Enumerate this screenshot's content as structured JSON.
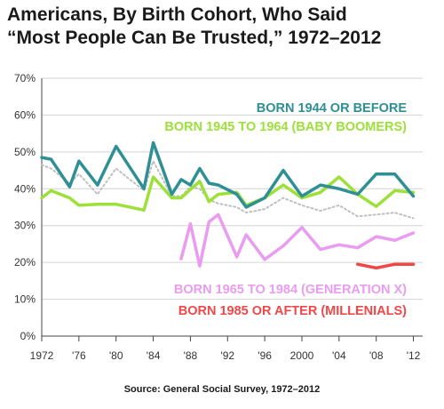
{
  "title_line1": "Americans, By Birth Cohort, Who Said",
  "title_line2": "“Most People Can Be Trusted,” 1972–2012",
  "source": "Source: General Social Survey, 1972–2012",
  "chart_data": {
    "type": "line",
    "title": "Americans, By Birth Cohort, Who Said “Most People Can Be Trusted,” 1972–2012",
    "xlabel": "",
    "ylabel": "",
    "ylim": [
      0,
      70
    ],
    "yticks": [
      0,
      10,
      20,
      30,
      40,
      50,
      60,
      70
    ],
    "ytick_labels": [
      "0%",
      "10%",
      "20%",
      "30%",
      "40%",
      "50%",
      "60%",
      "70%"
    ],
    "xlim": [
      1972,
      2013
    ],
    "xticks": [
      1972,
      1976,
      1980,
      1984,
      1988,
      1992,
      1996,
      2000,
      2004,
      2008,
      2012
    ],
    "xtick_labels": [
      "1972",
      "'76",
      "'80",
      "'84",
      "'88",
      "'92",
      "'96",
      "2000",
      "'04",
      "'08",
      "'12"
    ],
    "grid": true,
    "series": [
      {
        "name": "BORN 1944 OR BEFORE",
        "color": "#2e8f94",
        "label_in_chart": true,
        "x": [
          1972,
          1973,
          1975,
          1976,
          1978,
          1980,
          1983,
          1984,
          1986,
          1987,
          1988,
          1989,
          1990,
          1991,
          1993,
          1994,
          1996,
          1998,
          2000,
          2002,
          2004,
          2006,
          2008,
          2010,
          2012
        ],
        "values": [
          48.5,
          48,
          40.5,
          47.5,
          41,
          51.5,
          40,
          52.5,
          38.5,
          42.5,
          41,
          45.5,
          41.5,
          41,
          38.5,
          35,
          37.5,
          45,
          38,
          41,
          40,
          38.5,
          44,
          44,
          38
        ]
      },
      {
        "name": "BORN 1945 TO 1964 (BABY BOOMERS)",
        "color": "#9ee03a",
        "label_in_chart": true,
        "x": [
          1972,
          1973,
          1975,
          1976,
          1978,
          1980,
          1983,
          1984,
          1986,
          1987,
          1988,
          1989,
          1990,
          1991,
          1993,
          1994,
          1996,
          1998,
          2000,
          2002,
          2004,
          2006,
          2008,
          2010,
          2012
        ],
        "values": [
          37.5,
          39.5,
          37.5,
          35.5,
          35.8,
          35.8,
          34.2,
          43.2,
          37.5,
          37.5,
          39.8,
          42,
          36.5,
          38.5,
          39,
          35.5,
          37.5,
          41,
          37.5,
          39,
          43.2,
          38.5,
          35.2,
          39.5,
          39
        ]
      },
      {
        "name": "",
        "color": "#c0c0c0",
        "dashed": true,
        "label_in_chart": false,
        "x": [
          1972,
          1973,
          1975,
          1976,
          1978,
          1980,
          1983,
          1984,
          1986,
          1987,
          1988,
          1989,
          1990,
          1991,
          1993,
          1994,
          1996,
          1998,
          2000,
          2002,
          2004,
          2006,
          2008,
          2010,
          2012
        ],
        "values": [
          46.5,
          45.5,
          41.5,
          44,
          38.5,
          45.5,
          39.5,
          47.5,
          38,
          38,
          40.5,
          40,
          37,
          36,
          35,
          33.5,
          34.5,
          37.5,
          35.5,
          34,
          35.5,
          32.5,
          33,
          33.5,
          32
        ]
      },
      {
        "name": "BORN 1965 TO 1984 (GENERATION X)",
        "color": "#e99cf0",
        "label_in_chart": true,
        "x": [
          1987,
          1988,
          1989,
          1990,
          1991,
          1993,
          1994,
          1996,
          1998,
          2000,
          2002,
          2004,
          2006,
          2008,
          2010,
          2012
        ],
        "values": [
          21,
          30.5,
          19,
          31,
          33,
          21.5,
          27.5,
          20.8,
          24.5,
          29.5,
          23.5,
          24.8,
          24,
          27,
          26,
          28
        ]
      },
      {
        "name": "BORN 1985 OR AFTER (MILLENIALS)",
        "color": "#f04848",
        "label_in_chart": true,
        "x": [
          2006,
          2008,
          2010,
          2012
        ],
        "values": [
          19.5,
          18.5,
          19.5,
          19.5
        ]
      }
    ]
  }
}
